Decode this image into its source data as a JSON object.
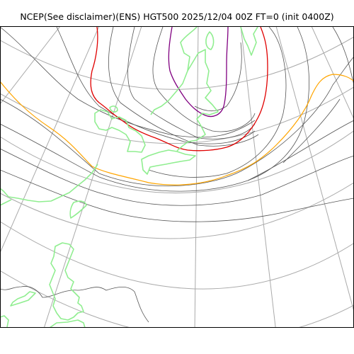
{
  "title": "NCEP(See disclaimer)(ENS) HGT500 2025/12/04 00Z FT=0 (init 0400Z)",
  "colors": {
    "coastline": "#90ee90",
    "graticule": "#aaaaaa",
    "contour": "#555555",
    "highlight_5400": "#e00000",
    "highlight_5100": "#800080",
    "highlight_5700": "#ffa500",
    "frame": "#000000",
    "background": "#ffffff"
  }
}
